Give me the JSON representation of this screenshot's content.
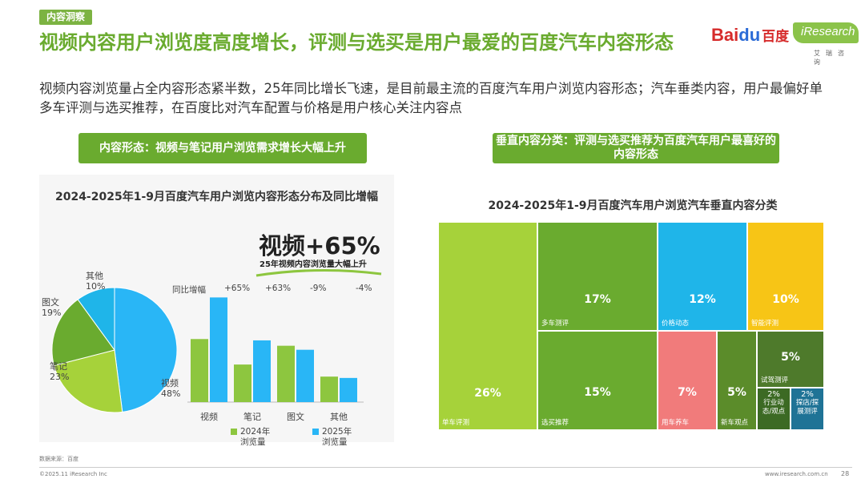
{
  "tag": "内容洞察",
  "title": "视频内容用户浏览度高度增长，评测与选买是用户最爱的百度汽车内容形态",
  "subtitle": "视频内容浏览量占全内容形态紧半数，25年同比增长飞速，是目前最主流的百度汽车用户浏览内容形态；汽车垂类内容，用户最偏好单多车评测与选买推荐，在百度比对汽车配置与价格是用户核心关注内容点",
  "logos": {
    "baidu_a": "Bai",
    "baidu_b": "du",
    "baidu_cn": "百度",
    "ir": "iResearch",
    "ir_sub": "艾瑞咨询"
  },
  "pill_left": "内容形态：视频与笔记用户浏览需求增长大幅上升",
  "pill_right": "垂直内容分类：评测与选买推荐为百度汽车用户最喜好的内容形态",
  "growth": {
    "headline": "视频+65%",
    "note": "25年视频内容浏览量大幅上升"
  },
  "colors": {
    "green": "#8dc63f",
    "blue": "#29b6f6",
    "pie_green_mid": "#a6d23a",
    "pie_green_dark": "#6aab2f"
  },
  "chart_data": [
    {
      "type": "pie",
      "title": "2024-2025年1-9月百度汽车用户浏览内容形态分布及同比增幅",
      "labels": [
        "视频",
        "笔记",
        "图文",
        "其他"
      ],
      "values": [
        48,
        23,
        19,
        10
      ],
      "display": [
        "视频\n48%",
        "笔记\n23%",
        "图文\n19%",
        "其他\n10%"
      ]
    },
    {
      "type": "bar",
      "categories": [
        "视频",
        "笔记",
        "图文",
        "其他"
      ],
      "series": [
        {
          "name": "2024年浏览量",
          "values": [
            47,
            28,
            42,
            19
          ]
        },
        {
          "name": "2025年浏览量",
          "values": [
            78,
            46,
            39,
            18
          ]
        }
      ],
      "yoy_label": "同比增幅",
      "yoy": [
        "+65%",
        "+63%",
        "-9%",
        "-4%"
      ],
      "legend": [
        "2024年\n浏览量",
        "2025年\n浏览量"
      ],
      "ylim": [
        0,
        80
      ]
    },
    {
      "type": "treemap",
      "title": "2024-2025年1-9月百度汽车用户浏览汽车垂直内容分类",
      "items": [
        {
          "label": "单车评测",
          "value": "26%",
          "color": "#a6d23a"
        },
        {
          "label": "多车测评",
          "value": "17%",
          "color": "#6aab2f"
        },
        {
          "label": "价格动态",
          "value": "12%",
          "color": "#1fb5e9"
        },
        {
          "label": "智能评测",
          "value": "10%",
          "color": "#f7c516"
        },
        {
          "label": "选买推荐",
          "value": "15%",
          "color": "#6aab2f"
        },
        {
          "label": "用车养车",
          "value": "7%",
          "color": "#f17b7b"
        },
        {
          "label": "新车观点",
          "value": "5%",
          "color": "#5b8c2a"
        },
        {
          "label": "试驾测评",
          "value": "5%",
          "color": "#4e7a2b"
        },
        {
          "label": "行业动态/观点",
          "value": "2%",
          "color": "#3c6a24"
        },
        {
          "label": "探店/探展测评",
          "value": "2%",
          "color": "#1f7396"
        }
      ]
    }
  ],
  "source": "数据来源：百度",
  "copyright": "©2025.11 iResearch Inc",
  "website": "www.iresearch.com.cn",
  "page": "28"
}
